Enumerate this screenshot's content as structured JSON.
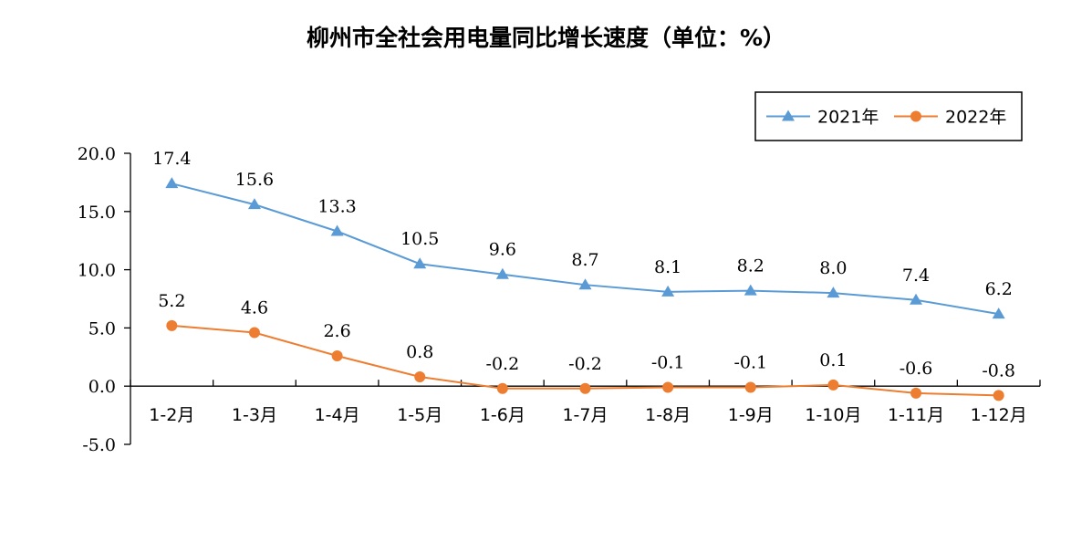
{
  "chart_data": {
    "type": "line",
    "title": "柳州市全社会用电量同比增长速度（单位：%）",
    "categories": [
      "1-2月",
      "1-3月",
      "1-4月",
      "1-5月",
      "1-6月",
      "1-7月",
      "1-8月",
      "1-9月",
      "1-10月",
      "1-11月",
      "1-12月"
    ],
    "series": [
      {
        "name": "2021年",
        "values": [
          17.4,
          15.6,
          13.3,
          10.5,
          9.6,
          8.7,
          8.1,
          8.2,
          8.0,
          7.4,
          6.2
        ],
        "labels": [
          "17.4",
          "15.6",
          "13.3",
          "10.5",
          "9.6",
          "8.7",
          "8.1",
          "8.2",
          "8.0",
          "7.4",
          "6.2"
        ],
        "color": "#5B9BD5",
        "marker": "triangle"
      },
      {
        "name": "2022年",
        "values": [
          5.2,
          4.6,
          2.6,
          0.8,
          -0.2,
          -0.2,
          -0.1,
          -0.1,
          0.1,
          -0.6,
          -0.8
        ],
        "labels": [
          "5.2",
          "4.6",
          "2.6",
          "0.8",
          "-0.2",
          "-0.2",
          "-0.1",
          "-0.1",
          "0.1",
          "-0.6",
          "-0.8"
        ],
        "color": "#ED7D31",
        "marker": "circle"
      }
    ],
    "ylim": [
      -5,
      20
    ],
    "yticks": [
      -5,
      0,
      5,
      10,
      15,
      20
    ],
    "ytick_labels": [
      "-5.0",
      "0.0",
      "5.0",
      "10.0",
      "15.0",
      "20.0"
    ],
    "grid": false,
    "legend_position": "top-right"
  }
}
